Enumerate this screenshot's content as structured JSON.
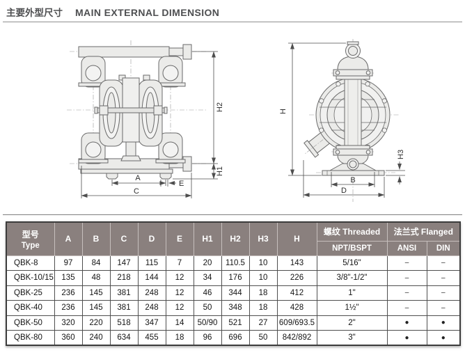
{
  "page": {
    "title_zh": "主要外型尺寸",
    "title_en": "MAIN EXTERNAL DIMENSION"
  },
  "drawings": {
    "front_view": {
      "description": "diaphragm pump front view technical drawing",
      "labels": {
        "h2": "H2",
        "h1": "H1",
        "a": "A",
        "e": "E",
        "c": "C"
      }
    },
    "side_view": {
      "description": "diaphragm pump side view technical drawing",
      "labels": {
        "h": "H",
        "h3": "H3",
        "b": "B",
        "d": "D"
      }
    }
  },
  "table": {
    "colors": {
      "header_bg": "#8a807e",
      "header_text": "#ffffff",
      "grid": "#4e4e4e"
    },
    "header": {
      "type_zh": "型号",
      "type_en": "Type",
      "dims": [
        "A",
        "B",
        "C",
        "D",
        "E",
        "H1",
        "H2",
        "H3",
        "H"
      ],
      "threaded_zh": "螺纹",
      "threaded_en": "Threaded",
      "threaded_sub": "NPT/BSPT",
      "flanged_zh": "法兰式",
      "flanged_en": "Flanged",
      "flanged_sub": [
        "ANSI",
        "DIN"
      ]
    },
    "rows": [
      {
        "type": "QBK-8",
        "a": "97",
        "b": "84",
        "c": "147",
        "d": "115",
        "e": "7",
        "h1": "20",
        "h2": "110.5",
        "h3": "10",
        "h": "143",
        "npt": "5/16\"",
        "ansi": "–",
        "din": "–"
      },
      {
        "type": "QBK-10/15",
        "a": "135",
        "b": "48",
        "c": "218",
        "d": "144",
        "e": "12",
        "h1": "34",
        "h2": "176",
        "h3": "10",
        "h": "226",
        "npt": "3/8\"-1/2\"",
        "ansi": "–",
        "din": "–"
      },
      {
        "type": "QBK-25",
        "a": "236",
        "b": "145",
        "c": "381",
        "d": "248",
        "e": "12",
        "h1": "46",
        "h2": "344",
        "h3": "18",
        "h": "412",
        "npt": "1\"",
        "ansi": "–",
        "din": "–"
      },
      {
        "type": "QBK-40",
        "a": "236",
        "b": "145",
        "c": "381",
        "d": "248",
        "e": "12",
        "h1": "50",
        "h2": "348",
        "h3": "18",
        "h": "428",
        "npt": "1½\"",
        "ansi": "–",
        "din": "–"
      },
      {
        "type": "QBK-50",
        "a": "320",
        "b": "220",
        "c": "518",
        "d": "347",
        "e": "14",
        "h1": "50/90",
        "h2": "521",
        "h3": "27",
        "h": "609/693.5",
        "npt": "2\"",
        "ansi": "●",
        "din": "●"
      },
      {
        "type": "QBK-80",
        "a": "360",
        "b": "240",
        "c": "634",
        "d": "455",
        "e": "18",
        "h1": "96",
        "h2": "696",
        "h3": "50",
        "h": "842/892",
        "npt": "3\"",
        "ansi": "●",
        "din": "●"
      }
    ]
  }
}
